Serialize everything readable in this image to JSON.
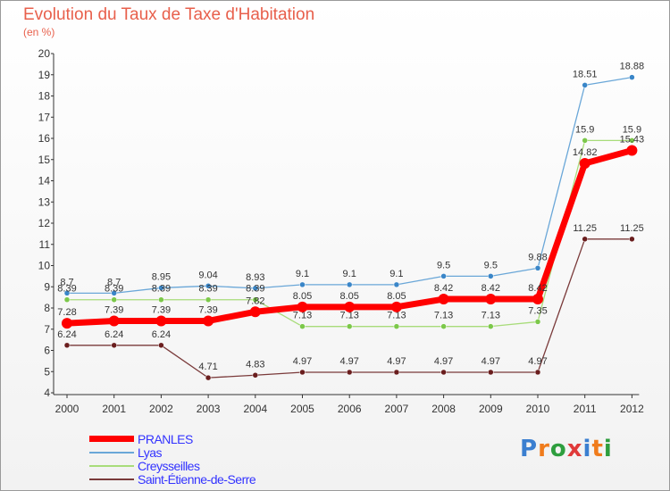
{
  "header": {
    "title": "Evolution du Taux de Taxe d'Habitation",
    "subtitle": "(en %)"
  },
  "logo": {
    "text": "Proxiti",
    "colors": [
      "#3b7fd0",
      "#f07c1c",
      "#2e9e3e",
      "#e03a3a",
      "#3b7fd0",
      "#f07c1c",
      "#2e9e3e"
    ]
  },
  "chart_data": {
    "type": "line",
    "title": "Evolution du Taux de Taxe d'Habitation",
    "subtitle": "(en %)",
    "xlabel": "",
    "ylabel": "",
    "categories": [
      "2000",
      "2001",
      "2002",
      "2003",
      "2004",
      "2005",
      "2006",
      "2007",
      "2008",
      "2009",
      "2010",
      "2011",
      "2012"
    ],
    "ylim": [
      4,
      20
    ],
    "yticks": [
      4,
      5,
      6,
      7,
      8,
      9,
      10,
      11,
      12,
      13,
      14,
      15,
      16,
      17,
      18,
      19,
      20
    ],
    "grid": false,
    "legend": "bottom-left",
    "series": [
      {
        "name": "Lyas",
        "color": "#6aa7d8",
        "marker_color": "#3a86c8",
        "width": 1.3,
        "values": [
          8.7,
          8.7,
          8.95,
          9.04,
          8.93,
          9.1,
          9.1,
          9.1,
          9.5,
          9.5,
          9.88,
          18.51,
          18.88
        ],
        "labels": [
          "8.7",
          "8.7",
          "8.95",
          "9.04",
          "8.93",
          "9.1",
          "9.1",
          "9.1",
          "9.5",
          "9.5",
          "9.88",
          "18.51",
          "18.88"
        ]
      },
      {
        "name": "Creysseilles",
        "color": "#a8dc7a",
        "marker_color": "#7cc84a",
        "width": 1.3,
        "values": [
          8.39,
          8.39,
          8.39,
          8.39,
          8.39,
          7.13,
          7.13,
          7.13,
          7.13,
          7.13,
          7.35,
          15.9,
          15.9
        ],
        "labels": [
          "8.39",
          "8.39",
          "8.39",
          "8.39",
          "8.39",
          "7.13",
          "7.13",
          "7.13",
          "7.13",
          "7.13",
          "7.35",
          "15.9",
          "15.9"
        ]
      },
      {
        "name": "Saint-Étienne-de-Serre",
        "color": "#7a3a3a",
        "marker_color": "#6a1e1e",
        "width": 1.3,
        "values": [
          6.24,
          6.24,
          6.24,
          4.71,
          4.83,
          4.97,
          4.97,
          4.97,
          4.97,
          4.97,
          4.97,
          11.25,
          11.25
        ],
        "labels": [
          "6.24",
          "6.24",
          "6.24",
          "4.71",
          "4.83",
          "4.97",
          "4.97",
          "4.97",
          "4.97",
          "4.97",
          "4.97",
          "11.25",
          "11.25"
        ]
      },
      {
        "name": "PRANLES",
        "color": "#ff0000",
        "marker_color": "#ff0000",
        "width": 7,
        "values": [
          7.28,
          7.39,
          7.39,
          7.39,
          7.82,
          8.05,
          8.05,
          8.05,
          8.42,
          8.42,
          8.42,
          14.82,
          15.43
        ],
        "labels": [
          "7.28",
          "7.39",
          "7.39",
          "7.39",
          "7.82",
          "8.05",
          "8.05",
          "8.05",
          "8.42",
          "8.42",
          "8.42",
          "14.82",
          "15.43"
        ]
      }
    ],
    "legend_order": [
      "PRANLES",
      "Lyas",
      "Creysseilles",
      "Saint-Étienne-de-Serre"
    ]
  }
}
